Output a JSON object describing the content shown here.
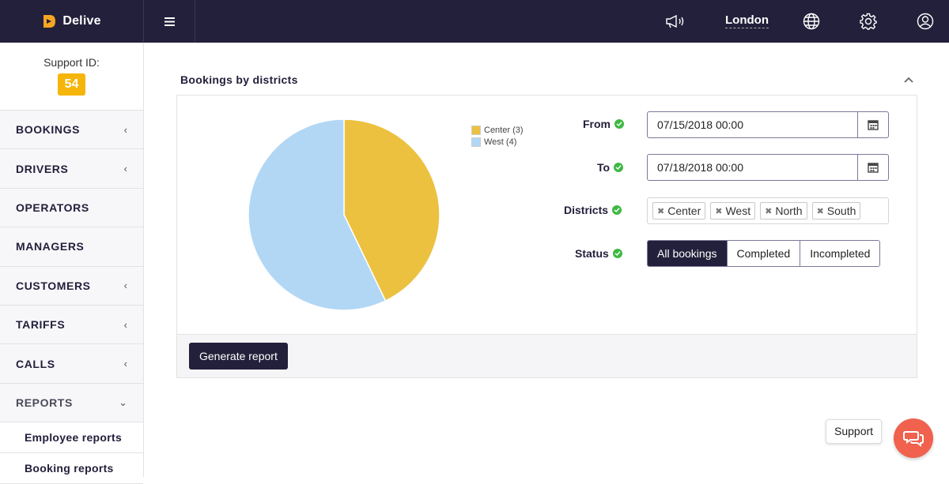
{
  "header": {
    "brand": "Delive",
    "city": "London",
    "icons": [
      "menu-icon",
      "megaphone-icon",
      "globe-icon",
      "gear-icon",
      "user-icon"
    ]
  },
  "sidebar": {
    "support_label": "Support ID:",
    "support_id": "54",
    "items": [
      {
        "label": "BOOKINGS",
        "chevron": "‹"
      },
      {
        "label": "DRIVERS",
        "chevron": "‹"
      },
      {
        "label": "OPERATORS",
        "chevron": ""
      },
      {
        "label": "MANAGERS",
        "chevron": ""
      },
      {
        "label": "CUSTOMERS",
        "chevron": "‹"
      },
      {
        "label": "TARIFFS",
        "chevron": "‹"
      },
      {
        "label": "CALLS",
        "chevron": "‹"
      },
      {
        "label": "REPORTS",
        "chevron": "⌄"
      }
    ],
    "subitems": [
      {
        "label": "Employee reports"
      },
      {
        "label": "Booking reports"
      }
    ]
  },
  "panel": {
    "title": "Bookings by districts",
    "generate_label": "Generate report"
  },
  "chart_data": {
    "type": "pie",
    "categories": [
      "Center (3)",
      "West (4)"
    ],
    "values": [
      3,
      4
    ],
    "colors": [
      "#ecc13f",
      "#b2d7f5"
    ],
    "legend": "top-right"
  },
  "form": {
    "from_label": "From",
    "from_value": "07/15/2018 00:00",
    "to_label": "To",
    "to_value": "07/18/2018 00:00",
    "districts_label": "Districts",
    "districts": [
      "Center",
      "West",
      "North",
      "South"
    ],
    "status_label": "Status",
    "status_options": [
      "All bookings",
      "Completed",
      "Incompleted"
    ],
    "status_selected": "All bookings"
  },
  "support": {
    "label": "Support"
  }
}
